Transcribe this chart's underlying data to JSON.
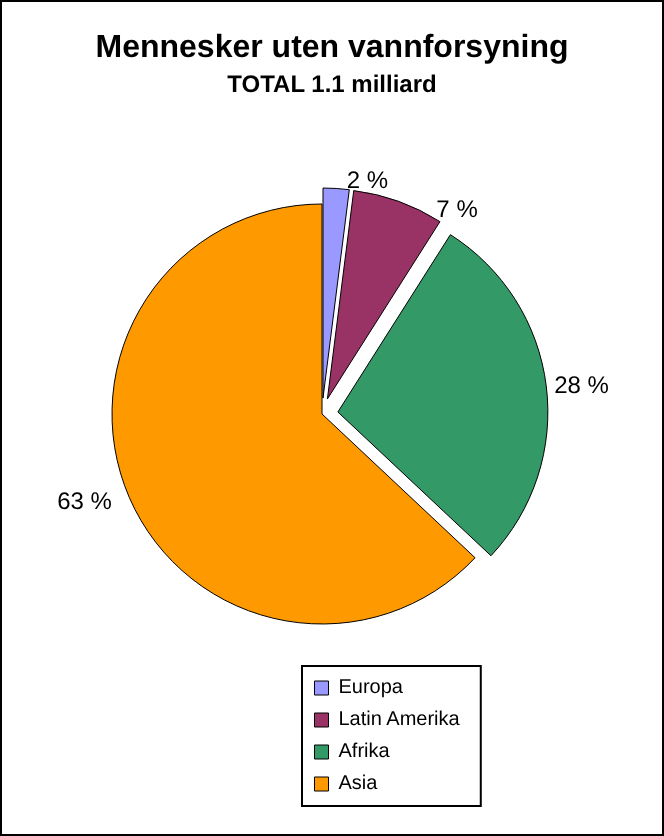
{
  "chart_data": {
    "type": "pie",
    "title": "Mennesker uten vannforsyning",
    "subtitle": "TOTAL 1.1 milliard",
    "categories": [
      "Europa",
      "Latin Amerika",
      "Afrika",
      "Asia"
    ],
    "values": [
      2,
      7,
      28,
      63
    ],
    "colors": [
      "#9999ff",
      "#993366",
      "#339966",
      "#ff9900"
    ],
    "value_labels": [
      "2 %",
      "7 %",
      "28 %",
      "63 %"
    ],
    "legend": "bottom"
  }
}
